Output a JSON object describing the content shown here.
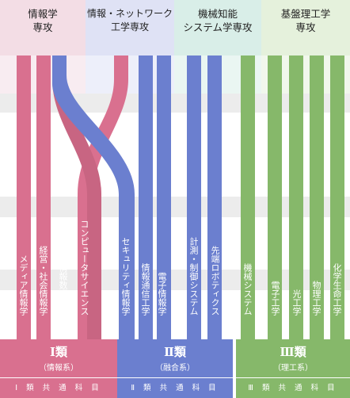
{
  "colors": {
    "pink": "#d9708f",
    "blue": "#6b7fcf",
    "green": "#86b86a",
    "pink_bg": "#f3dde5",
    "blue_bg": "#dfe2f5",
    "mint_bg": "#d9eee8",
    "green_bg": "#e5f1dc"
  },
  "departments": [
    {
      "name": "情報学\n専攻"
    },
    {
      "name": "情報・ネットワーク\n工学専攻"
    },
    {
      "name": "機械知能\nシステム学専攻"
    },
    {
      "name": "基盤理工学\n専攻"
    }
  ],
  "programs": [
    {
      "label": "メディア情報学"
    },
    {
      "label": "経営・社会情報学"
    },
    {
      "label": "情報数理工学"
    },
    {
      "label": "コンピュータサイエンス"
    },
    {
      "label": "セキュリティ情報学"
    },
    {
      "label": "情報通信工学"
    },
    {
      "label": "電子情報学"
    },
    {
      "label": "計測・制御システム"
    },
    {
      "label": "先端ロボティクス"
    },
    {
      "label": "機械システム"
    },
    {
      "label": "電子工学"
    },
    {
      "label": "光工学"
    },
    {
      "label": "物理工学"
    },
    {
      "label": "化学生命工学"
    }
  ],
  "categories": [
    {
      "name": "Ⅰ類",
      "sub": "（情報系）",
      "common": "Ⅰ 類 共 通 科 目"
    },
    {
      "name": "Ⅱ類",
      "sub": "（融合系）",
      "common": "Ⅱ 類 共 通 科 目"
    },
    {
      "name": "Ⅲ類",
      "sub": "（理工系）",
      "common": "Ⅲ 類 共 通 科 目"
    }
  ]
}
